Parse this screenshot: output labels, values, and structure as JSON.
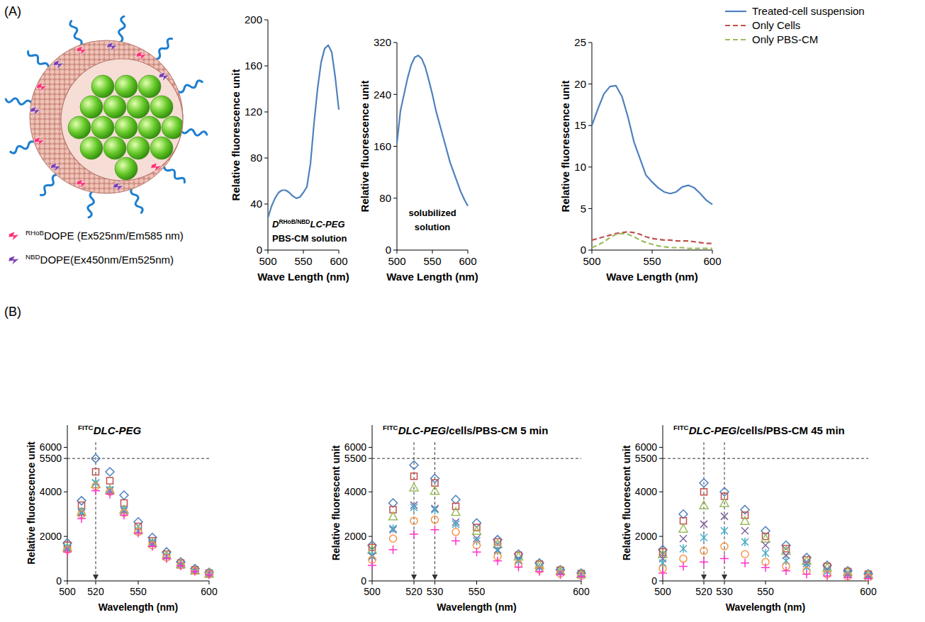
{
  "panel_labels": [
    "(A)",
    "(B)"
  ],
  "diagram": {
    "legend": [
      [
        {
          "superscript": "RHoB"
        },
        {
          "text": "DOPE (Ex525nm/Em585 nm)"
        }
      ],
      [
        {
          "superscript": "NBD"
        },
        {
          "text": "DOPE(Ex450nm/Em525nm)"
        }
      ]
    ]
  },
  "chart_data": [
    {
      "type": "line",
      "x": [
        500,
        505,
        510,
        515,
        520,
        525,
        530,
        535,
        540,
        545,
        550,
        555,
        560,
        565,
        570,
        575,
        580,
        585,
        590,
        595,
        600
      ],
      "series": [
        {
          "color": "#4f81bd",
          "line_style": "solid",
          "values": [
            28,
            38,
            45,
            50,
            52,
            52,
            50,
            47,
            45,
            46,
            50,
            55,
            75,
            110,
            140,
            163,
            175,
            178,
            172,
            150,
            122
          ]
        }
      ],
      "xlim": [
        500,
        600
      ],
      "xticks": [
        500,
        550,
        600
      ],
      "ylim": [
        0,
        200
      ],
      "yticks": [
        0,
        40,
        80,
        120,
        160,
        200
      ],
      "xlabel": "Wave Length (nm)",
      "ylabel": "Relative fluorescence unit",
      "annotation": [
        [
          {
            "italic": "D"
          },
          {
            "superscript": "RHoB/NBD"
          },
          {
            "italic": "LC-PEG"
          }
        ],
        [
          {
            "text": "PBS-CM solution"
          }
        ]
      ]
    },
    {
      "type": "line",
      "x": [
        500,
        505,
        510,
        515,
        520,
        525,
        530,
        535,
        540,
        545,
        550,
        555,
        560,
        565,
        570,
        575,
        580,
        585,
        590,
        595,
        600
      ],
      "series": [
        {
          "color": "#4f81bd",
          "line_style": "solid",
          "values": [
            165,
            215,
            240,
            265,
            285,
            297,
            300,
            295,
            282,
            262,
            240,
            215,
            195,
            175,
            155,
            135,
            120,
            105,
            90,
            78,
            68
          ]
        }
      ],
      "xlim": [
        500,
        600
      ],
      "xticks": [
        500,
        550,
        600
      ],
      "ylim": [
        0,
        320
      ],
      "yticks": [
        0,
        80,
        160,
        240,
        320
      ],
      "xlabel": "Wave Length (nm)",
      "ylabel": "Relative fluorescence unit",
      "annotation": [
        [
          {
            "text": "solubilized"
          }
        ],
        [
          {
            "text": "solution"
          }
        ]
      ]
    },
    {
      "type": "line",
      "x": [
        500,
        505,
        510,
        515,
        520,
        525,
        530,
        535,
        540,
        545,
        550,
        555,
        560,
        565,
        570,
        575,
        580,
        585,
        590,
        595,
        600
      ],
      "series": [
        {
          "name": "Treated-cell suspension",
          "color": "#4f81bd",
          "line_style": "solid",
          "values": [
            15,
            17,
            18.8,
            19.7,
            19.8,
            18.5,
            16,
            13,
            11,
            9,
            8.2,
            7.5,
            7,
            6.8,
            7,
            7.6,
            7.8,
            7.5,
            6.8,
            6,
            5.5
          ]
        },
        {
          "name": "Only Cells",
          "color": "#c0504d",
          "line_style": "dashed",
          "values": [
            1.2,
            1.4,
            1.6,
            1.8,
            2,
            2.1,
            2.2,
            2.1,
            1.9,
            1.6,
            1.4,
            1.3,
            1.2,
            1.2,
            1.1,
            1.1,
            1.1,
            1,
            0.9,
            0.8,
            0.8
          ]
        },
        {
          "name": "Only PBS-CM",
          "color": "#9bbb59",
          "line_style": "dashed",
          "values": [
            0.3,
            0.6,
            1,
            1.5,
            1.9,
            2,
            1.9,
            1.6,
            1.2,
            0.9,
            0.7,
            0.5,
            0.4,
            0.3,
            0.3,
            0.3,
            0.2,
            0.2,
            0.2,
            0.2,
            0.2
          ]
        }
      ],
      "xlim": [
        500,
        600
      ],
      "xticks": [
        500,
        550,
        600
      ],
      "ylim": [
        0,
        25
      ],
      "yticks": [
        0,
        5,
        10,
        15,
        20,
        25
      ],
      "xlabel": "Wave Length (nm)",
      "ylabel": "Relative fluorescence unit",
      "legend": "top-right"
    },
    {
      "type": "scatter",
      "title": [
        {
          "superscript": "FITC"
        },
        {
          "italic": "DLC-PEG"
        }
      ],
      "x": [
        500,
        510,
        520,
        530,
        540,
        550,
        560,
        570,
        580,
        590,
        600
      ],
      "series": [
        {
          "color": "#4f81bd",
          "marker": "diamond",
          "values": [
            1700,
            3600,
            5500,
            4900,
            3850,
            2650,
            1950,
            1300,
            850,
            550,
            380
          ]
        },
        {
          "color": "#c0504d",
          "marker": "square",
          "values": [
            1600,
            3400,
            4900,
            4500,
            3500,
            2450,
            1800,
            1200,
            800,
            500,
            350
          ]
        },
        {
          "color": "#9bbb59",
          "marker": "triangle",
          "values": [
            1500,
            3100,
            4350,
            4100,
            3200,
            2300,
            1700,
            1150,
            750,
            480,
            330
          ]
        },
        {
          "color": "#8064a2",
          "marker": "x",
          "values": [
            1450,
            3050,
            4400,
            4050,
            3150,
            2250,
            1650,
            1100,
            720,
            460,
            320
          ]
        },
        {
          "color": "#4bacc6",
          "marker": "star",
          "values": [
            1500,
            3100,
            4400,
            4100,
            3200,
            2250,
            1700,
            1100,
            730,
            470,
            320
          ]
        },
        {
          "color": "#f79646",
          "marker": "circle",
          "values": [
            1400,
            3000,
            4250,
            4000,
            3050,
            2200,
            1600,
            1050,
            700,
            450,
            300
          ]
        },
        {
          "color": "#ff33cc",
          "marker": "plus",
          "values": [
            1300,
            2800,
            4050,
            3900,
            2950,
            2150,
            1550,
            1000,
            680,
            430,
            280
          ]
        }
      ],
      "xlim": [
        500,
        600
      ],
      "xticks": [
        500,
        520,
        550,
        600
      ],
      "ylim": [
        0,
        7000
      ],
      "yticks": [
        0,
        2000,
        4000,
        5500,
        6000
      ],
      "hlines": [
        5500
      ],
      "vlines": [
        520
      ],
      "xlabel": "Wavelength (nm)",
      "ylabel": "Relative fluorescence unit"
    },
    {
      "type": "scatter",
      "title": [
        {
          "superscript": "FITC"
        },
        {
          "italic": "DLC-PEG"
        },
        {
          "text": "/cells/PBS-CM 5 min"
        }
      ],
      "x": [
        500,
        510,
        520,
        530,
        540,
        550,
        560,
        570,
        580,
        590,
        600
      ],
      "series": [
        {
          "color": "#4f81bd",
          "marker": "diamond",
          "values": [
            1600,
            3500,
            5200,
            4600,
            3650,
            2600,
            1850,
            1200,
            800,
            500,
            350
          ]
        },
        {
          "color": "#c0504d",
          "marker": "square",
          "values": [
            1500,
            3200,
            4700,
            4400,
            3350,
            2400,
            1750,
            1150,
            750,
            480,
            330
          ]
        },
        {
          "color": "#9bbb59",
          "marker": "triangle",
          "values": [
            1400,
            2900,
            4200,
            4050,
            3100,
            2250,
            1650,
            1100,
            720,
            460,
            310
          ]
        },
        {
          "color": "#8064a2",
          "marker": "x",
          "values": [
            1100,
            2300,
            3400,
            3250,
            2650,
            1900,
            1400,
            950,
            620,
            400,
            280
          ]
        },
        {
          "color": "#4bacc6",
          "marker": "star",
          "values": [
            1150,
            2350,
            3300,
            3200,
            2550,
            1800,
            1350,
            900,
            600,
            390,
            270
          ]
        },
        {
          "color": "#f79646",
          "marker": "circle",
          "values": [
            950,
            1900,
            2700,
            2750,
            2200,
            1600,
            1100,
            750,
            500,
            330,
            230
          ]
        },
        {
          "color": "#ff33cc",
          "marker": "plus",
          "values": [
            700,
            1400,
            2100,
            2300,
            1800,
            1300,
            900,
            620,
            420,
            280,
            200
          ]
        }
      ],
      "xlim": [
        500,
        600
      ],
      "xticks": [
        500,
        520,
        530,
        550,
        600
      ],
      "ylim": [
        0,
        7000
      ],
      "yticks": [
        0,
        2000,
        4000,
        5500,
        6000
      ],
      "hlines": [
        5500
      ],
      "vlines": [
        520,
        530
      ],
      "xlabel": "Wavelength (nm)",
      "ylabel": "Relative fluorescent unit"
    },
    {
      "type": "scatter",
      "title": [
        {
          "superscript": "FITC"
        },
        {
          "italic": "DLC-PEG"
        },
        {
          "text": "/cells/PBS-CM 45 min"
        }
      ],
      "x": [
        500,
        510,
        520,
        530,
        540,
        550,
        560,
        570,
        580,
        590,
        600
      ],
      "series": [
        {
          "color": "#4f81bd",
          "marker": "diamond",
          "values": [
            1400,
            3000,
            4400,
            4000,
            3200,
            2250,
            1600,
            1050,
            700,
            450,
            320
          ]
        },
        {
          "color": "#c0504d",
          "marker": "square",
          "values": [
            1300,
            2700,
            4000,
            3800,
            2950,
            2000,
            1450,
            950,
            650,
            420,
            300
          ]
        },
        {
          "color": "#9bbb59",
          "marker": "triangle",
          "values": [
            1200,
            2350,
            3400,
            3500,
            2700,
            1900,
            1350,
            900,
            600,
            400,
            280
          ]
        },
        {
          "color": "#8064a2",
          "marker": "x",
          "values": [
            1000,
            1900,
            2550,
            2900,
            2250,
            1600,
            1150,
            780,
            520,
            340,
            250
          ]
        },
        {
          "color": "#4bacc6",
          "marker": "star",
          "values": [
            800,
            1450,
            1950,
            2250,
            1750,
            1250,
            900,
            620,
            420,
            280,
            200
          ]
        },
        {
          "color": "#f79646",
          "marker": "circle",
          "values": [
            550,
            1000,
            1350,
            1550,
            1200,
            850,
            650,
            450,
            300,
            200,
            150
          ]
        },
        {
          "color": "#ff33cc",
          "marker": "plus",
          "values": [
            350,
            650,
            850,
            1000,
            800,
            600,
            450,
            300,
            220,
            150,
            100
          ]
        }
      ],
      "xlim": [
        500,
        600
      ],
      "xticks": [
        500,
        520,
        530,
        550,
        600
      ],
      "ylim": [
        0,
        7000
      ],
      "yticks": [
        0,
        2000,
        4000,
        5500,
        6000
      ],
      "hlines": [
        5500
      ],
      "vlines": [
        520,
        530
      ],
      "xlabel": "Wavelength (nm)",
      "ylabel": "Relative fluorescent unit"
    }
  ]
}
